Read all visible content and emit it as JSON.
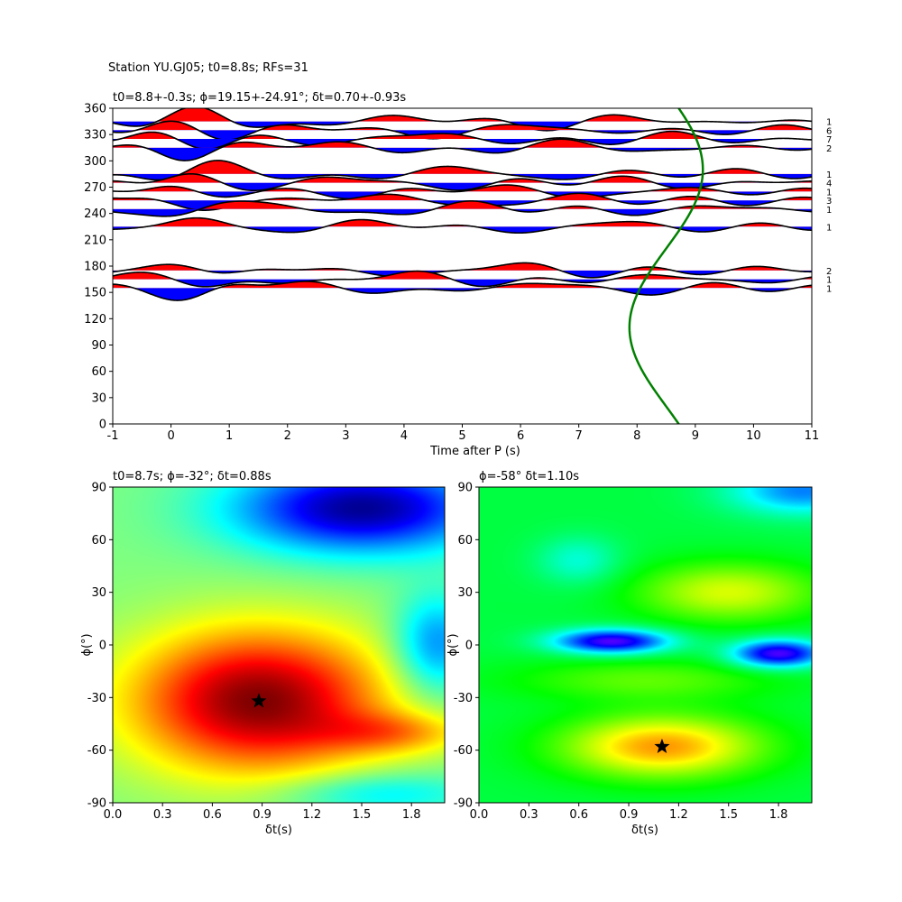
{
  "figure_title": "Station YU.GJ05; t0=8.8s; RFs=31",
  "chart_data": [
    {
      "type": "line",
      "title": "t0=8.8+-0.3s; ϕ=19.15+-24.91°; δt=0.70+-0.93s",
      "xlabel": "Time after P (s)",
      "ylabel": "",
      "xlim": [
        -1,
        11
      ],
      "ylim": [
        0,
        360
      ],
      "xticks": [
        -1,
        0,
        1,
        2,
        3,
        4,
        5,
        6,
        7,
        8,
        9,
        10,
        11
      ],
      "yticks": [
        0,
        30,
        60,
        90,
        120,
        150,
        180,
        210,
        240,
        270,
        300,
        330,
        360
      ],
      "traces": [
        {
          "baz": 345,
          "count": "1"
        },
        {
          "baz": 335,
          "count": "6"
        },
        {
          "baz": 325,
          "count": "7"
        },
        {
          "baz": 315,
          "count": "2"
        },
        {
          "baz": 285,
          "count": "1"
        },
        {
          "baz": 275,
          "count": "4"
        },
        {
          "baz": 265,
          "count": "1"
        },
        {
          "baz": 255,
          "count": "3"
        },
        {
          "baz": 245,
          "count": "1"
        },
        {
          "baz": 225,
          "count": "1"
        },
        {
          "baz": 175,
          "count": "2"
        },
        {
          "baz": 165,
          "count": "1"
        },
        {
          "baz": 155,
          "count": "1"
        }
      ],
      "green_curve": {
        "center_time": 8.5,
        "amplitude": 0.63,
        "period_deg": 360,
        "max_at_baz": 290
      },
      "colors": {
        "positive": "#ff0000",
        "negative": "#0000ff",
        "trace": "#000000",
        "curve": "#008000"
      }
    },
    {
      "type": "heatmap",
      "title": "t0=8.7s; ϕ=-32°; δt=0.88s",
      "xlabel": "δt(s)",
      "ylabel": "ϕ(°)",
      "xlim": [
        0,
        2
      ],
      "ylim": [
        -90,
        90
      ],
      "xticks": [
        0.0,
        0.3,
        0.6,
        0.9,
        1.2,
        1.5,
        1.8
      ],
      "yticks": [
        -90,
        -60,
        -30,
        0,
        30,
        60,
        90
      ],
      "colormap": "jet",
      "best": {
        "dt": 0.88,
        "phi": -32
      }
    },
    {
      "type": "heatmap",
      "title": "ϕ=-58° δt=1.10s",
      "xlabel": "δt(s)",
      "ylabel": "ϕ(°)",
      "xlim": [
        0,
        2
      ],
      "ylim": [
        -90,
        90
      ],
      "xticks": [
        0.0,
        0.3,
        0.6,
        0.9,
        1.2,
        1.5,
        1.8
      ],
      "yticks": [
        -90,
        -60,
        -30,
        0,
        30,
        60,
        90
      ],
      "colormap": "hsv",
      "best": {
        "dt": 1.1,
        "phi": -58
      }
    }
  ]
}
